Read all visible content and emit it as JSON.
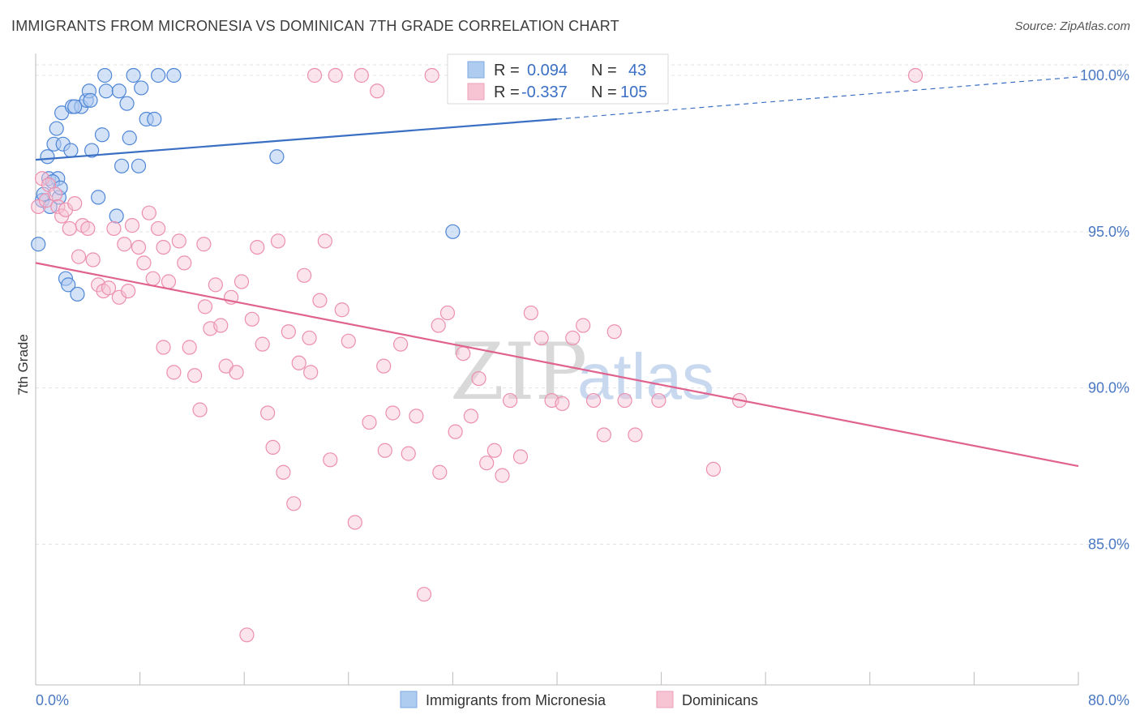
{
  "title": "IMMIGRANTS FROM MICRONESIA VS DOMINICAN 7TH GRADE CORRELATION CHART",
  "source": "Source: ZipAtlas.com",
  "watermark": {
    "zip": "ZIP",
    "atlas": "atlas"
  },
  "colors": {
    "blue": "#3a6fc4",
    "blue_fill": "#aecbf0",
    "pink": "#e0628e",
    "pink_fill": "#f7c4d4",
    "grid": "#e3e3e3",
    "axis_text": "#4a78c2"
  },
  "legend": {
    "r_label": "R =",
    "n_label": "N =",
    "rows": [
      {
        "r": "0.094",
        "n": "43"
      },
      {
        "r": "-0.337",
        "n": "105"
      }
    ]
  },
  "chart_data": {
    "type": "scatter",
    "title": "IMMIGRANTS FROM MICRONESIA VS DOMINICAN 7TH GRADE CORRELATION CHART",
    "xlabel": "",
    "ylabel": "7th Grade",
    "xlim": [
      0,
      80
    ],
    "ylim": [
      80.5,
      100.7
    ],
    "x_tick_labels": [
      "0.0%",
      "80.0%"
    ],
    "y_ticks": [
      85,
      90,
      95,
      100
    ],
    "y_tick_labels": [
      "85.0%",
      "90.0%",
      "95.0%",
      "100.0%"
    ],
    "grid": true,
    "legend_position": "top-center",
    "series": [
      {
        "name": "Immigrants from Micronesia",
        "color": "#3a6fc4",
        "r": 0.094,
        "n": 43,
        "trend": {
          "x0": 0,
          "y0": 97.3,
          "x1": 40,
          "y1": 98.6,
          "x_dash_end": 80,
          "y_dash_end": 99.95
        },
        "points": [
          [
            0.2,
            94.6
          ],
          [
            0.5,
            96.0
          ],
          [
            0.6,
            96.2
          ],
          [
            0.9,
            97.4
          ],
          [
            1.0,
            96.7
          ],
          [
            1.1,
            95.8
          ],
          [
            1.4,
            97.8
          ],
          [
            1.6,
            98.3
          ],
          [
            1.7,
            96.7
          ],
          [
            1.8,
            96.1
          ],
          [
            2.0,
            98.8
          ],
          [
            2.1,
            97.8
          ],
          [
            2.3,
            93.5
          ],
          [
            2.5,
            93.3
          ],
          [
            2.7,
            97.6
          ],
          [
            2.8,
            99.0
          ],
          [
            3.2,
            93.0
          ],
          [
            3.5,
            99.0
          ],
          [
            3.9,
            99.2
          ],
          [
            4.1,
            99.5
          ],
          [
            4.2,
            99.2
          ],
          [
            4.3,
            97.6
          ],
          [
            4.8,
            96.1
          ],
          [
            5.1,
            98.1
          ],
          [
            5.4,
            99.5
          ],
          [
            5.3,
            100.0
          ],
          [
            6.2,
            95.5
          ],
          [
            6.4,
            99.5
          ],
          [
            6.6,
            97.1
          ],
          [
            7.0,
            99.1
          ],
          [
            7.2,
            98.0
          ],
          [
            7.5,
            100.0
          ],
          [
            7.9,
            97.1
          ],
          [
            8.1,
            99.6
          ],
          [
            8.5,
            98.6
          ],
          [
            9.1,
            98.6
          ],
          [
            9.4,
            100.0
          ],
          [
            10.6,
            100.0
          ],
          [
            1.3,
            96.6
          ],
          [
            1.9,
            96.4
          ],
          [
            3.0,
            99.0
          ],
          [
            18.5,
            97.4
          ],
          [
            32.0,
            95.0
          ]
        ]
      },
      {
        "name": "Dominicans",
        "color": "#e0628e",
        "r": -0.337,
        "n": 105,
        "trend": {
          "x0": 0,
          "y0": 94.0,
          "x1": 80,
          "y1": 87.5
        },
        "points": [
          [
            0.2,
            95.8
          ],
          [
            0.5,
            96.7
          ],
          [
            0.8,
            96.0
          ],
          [
            1.0,
            96.5
          ],
          [
            1.5,
            96.2
          ],
          [
            1.7,
            95.8
          ],
          [
            2.0,
            95.5
          ],
          [
            2.3,
            95.7
          ],
          [
            2.6,
            95.1
          ],
          [
            3.0,
            95.9
          ],
          [
            3.3,
            94.2
          ],
          [
            3.6,
            95.2
          ],
          [
            4.0,
            95.1
          ],
          [
            4.4,
            94.1
          ],
          [
            4.8,
            93.3
          ],
          [
            5.2,
            93.1
          ],
          [
            5.6,
            93.2
          ],
          [
            6.0,
            95.1
          ],
          [
            6.4,
            92.9
          ],
          [
            6.8,
            94.6
          ],
          [
            7.1,
            93.1
          ],
          [
            7.4,
            95.2
          ],
          [
            7.9,
            94.5
          ],
          [
            8.3,
            94.0
          ],
          [
            8.7,
            95.6
          ],
          [
            9.0,
            93.5
          ],
          [
            9.4,
            95.1
          ],
          [
            9.8,
            94.5
          ],
          [
            10.2,
            93.4
          ],
          [
            10.6,
            90.5
          ],
          [
            11.0,
            94.7
          ],
          [
            11.4,
            94.0
          ],
          [
            11.8,
            91.3
          ],
          [
            12.2,
            90.4
          ],
          [
            12.6,
            89.3
          ],
          [
            13.0,
            92.6
          ],
          [
            13.4,
            91.9
          ],
          [
            13.8,
            93.3
          ],
          [
            14.2,
            92.0
          ],
          [
            14.6,
            90.7
          ],
          [
            15.0,
            92.9
          ],
          [
            15.4,
            90.5
          ],
          [
            15.8,
            93.4
          ],
          [
            16.2,
            82.1
          ],
          [
            16.6,
            92.2
          ],
          [
            17.0,
            94.5
          ],
          [
            17.4,
            91.4
          ],
          [
            17.8,
            89.2
          ],
          [
            18.2,
            88.1
          ],
          [
            18.6,
            94.7
          ],
          [
            19.0,
            87.3
          ],
          [
            19.4,
            91.8
          ],
          [
            19.8,
            86.3
          ],
          [
            20.2,
            90.8
          ],
          [
            20.6,
            93.6
          ],
          [
            21.0,
            91.6
          ],
          [
            21.4,
            100.0
          ],
          [
            21.8,
            92.8
          ],
          [
            22.2,
            94.7
          ],
          [
            22.6,
            87.7
          ],
          [
            23.0,
            100.0
          ],
          [
            23.5,
            92.5
          ],
          [
            24.0,
            91.5
          ],
          [
            24.5,
            85.7
          ],
          [
            25.0,
            100.0
          ],
          [
            25.6,
            88.9
          ],
          [
            26.2,
            99.5
          ],
          [
            26.8,
            88.0
          ],
          [
            27.4,
            89.2
          ],
          [
            28.0,
            91.4
          ],
          [
            28.6,
            87.9
          ],
          [
            29.2,
            89.1
          ],
          [
            29.8,
            83.4
          ],
          [
            30.4,
            100.0
          ],
          [
            31.0,
            87.3
          ],
          [
            31.6,
            92.4
          ],
          [
            32.2,
            88.6
          ],
          [
            32.8,
            91.1
          ],
          [
            33.4,
            89.1
          ],
          [
            34.0,
            90.3
          ],
          [
            34.6,
            87.6
          ],
          [
            35.2,
            88.0
          ],
          [
            35.8,
            87.2
          ],
          [
            36.4,
            89.6
          ],
          [
            37.2,
            87.8
          ],
          [
            38.0,
            92.4
          ],
          [
            38.8,
            91.6
          ],
          [
            39.6,
            89.6
          ],
          [
            40.4,
            89.5
          ],
          [
            41.2,
            91.6
          ],
          [
            42.0,
            92.0
          ],
          [
            42.8,
            89.6
          ],
          [
            43.6,
            88.5
          ],
          [
            44.4,
            91.8
          ],
          [
            45.2,
            89.6
          ],
          [
            46.0,
            88.5
          ],
          [
            47.8,
            89.6
          ],
          [
            52.0,
            87.4
          ],
          [
            54.0,
            89.6
          ],
          [
            67.5,
            100.0
          ],
          [
            9.8,
            91.3
          ],
          [
            12.9,
            94.6
          ],
          [
            26.7,
            90.7
          ],
          [
            30.9,
            92.0
          ],
          [
            21.1,
            90.5
          ]
        ]
      }
    ]
  },
  "bottom_legend": [
    {
      "label": "Immigrants from Micronesia"
    },
    {
      "label": "Dominicans"
    }
  ]
}
